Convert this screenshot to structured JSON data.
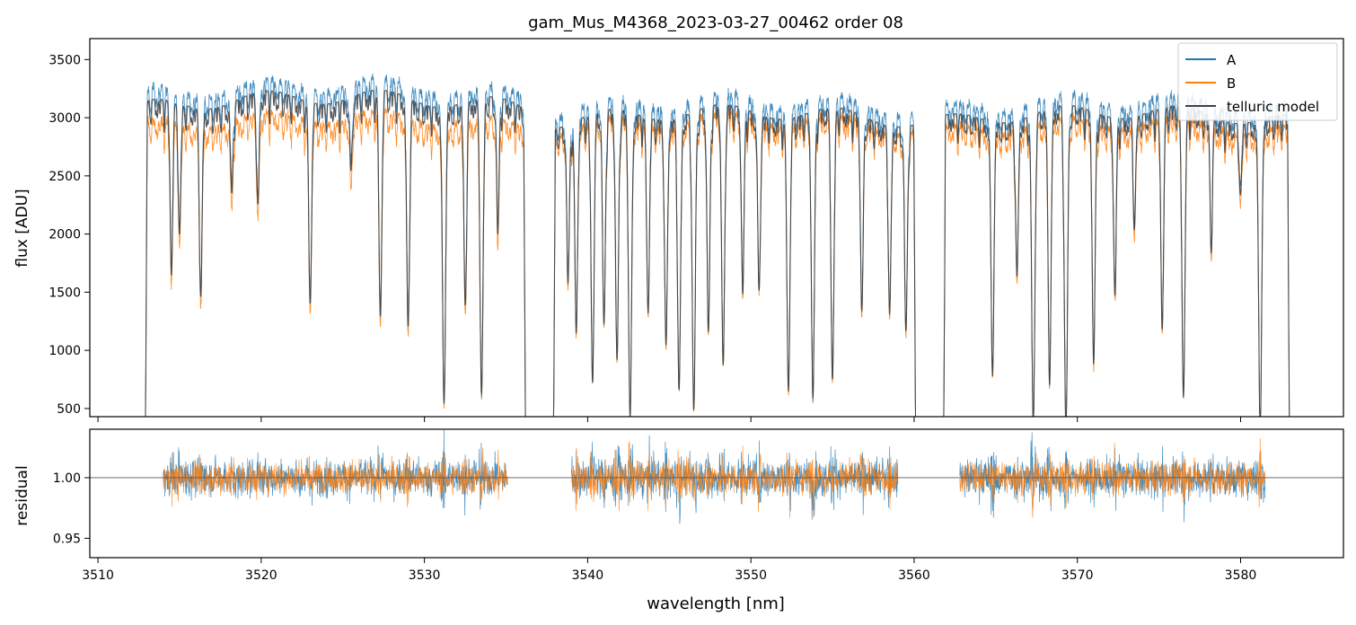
{
  "chart_data": [
    {
      "type": "line",
      "title": "gam_Mus_M4368_2023-03-27_00462  order 08",
      "xlabel": "",
      "ylabel": "flux [ADU]",
      "xlim": [
        3509.5,
        3586.3
      ],
      "ylim": [
        430,
        3680
      ],
      "x_ticks": [
        3510,
        3520,
        3530,
        3540,
        3550,
        3560,
        3570,
        3580
      ],
      "y_ticks": [
        500,
        1000,
        1500,
        2000,
        2500,
        3000,
        3500
      ],
      "y_tick_labels": [
        "500",
        "1000",
        "1500",
        "2000",
        "2500",
        "3000",
        "3500"
      ],
      "legend_position": "top-right",
      "grid": false,
      "segments": [
        {
          "start": 3512.9,
          "end": 3536.2,
          "a_level": 3280,
          "b_level": 3000
        },
        {
          "start": 3537.9,
          "end": 3560.1,
          "a_level": 3150,
          "b_level": 2980
        },
        {
          "start": 3561.8,
          "end": 3583.0,
          "a_level": 3150,
          "b_level": 2950
        }
      ],
      "absorption_lines": [
        {
          "x": 3514.5,
          "depth": 0.45
        },
        {
          "x": 3515.0,
          "depth": 0.35
        },
        {
          "x": 3516.3,
          "depth": 0.52
        },
        {
          "x": 3518.2,
          "depth": 0.25
        },
        {
          "x": 3519.8,
          "depth": 0.3
        },
        {
          "x": 3523.0,
          "depth": 0.55
        },
        {
          "x": 3525.5,
          "depth": 0.2
        },
        {
          "x": 3527.3,
          "depth": 0.6
        },
        {
          "x": 3529.0,
          "depth": 0.62
        },
        {
          "x": 3531.2,
          "depth": 0.82
        },
        {
          "x": 3532.5,
          "depth": 0.55
        },
        {
          "x": 3533.5,
          "depth": 0.8
        },
        {
          "x": 3534.5,
          "depth": 0.35
        },
        {
          "x": 3538.8,
          "depth": 0.45
        },
        {
          "x": 3539.3,
          "depth": 0.6
        },
        {
          "x": 3540.3,
          "depth": 0.75
        },
        {
          "x": 3541.0,
          "depth": 0.6
        },
        {
          "x": 3541.8,
          "depth": 0.7
        },
        {
          "x": 3542.6,
          "depth": 0.86
        },
        {
          "x": 3543.7,
          "depth": 0.55
        },
        {
          "x": 3544.8,
          "depth": 0.65
        },
        {
          "x": 3545.6,
          "depth": 0.78
        },
        {
          "x": 3546.5,
          "depth": 0.84
        },
        {
          "x": 3547.4,
          "depth": 0.62
        },
        {
          "x": 3548.3,
          "depth": 0.72
        },
        {
          "x": 3549.5,
          "depth": 0.5
        },
        {
          "x": 3550.5,
          "depth": 0.5
        },
        {
          "x": 3552.3,
          "depth": 0.78
        },
        {
          "x": 3553.8,
          "depth": 0.8
        },
        {
          "x": 3555.0,
          "depth": 0.75
        },
        {
          "x": 3556.8,
          "depth": 0.55
        },
        {
          "x": 3558.5,
          "depth": 0.55
        },
        {
          "x": 3559.5,
          "depth": 0.6
        },
        {
          "x": 3564.8,
          "depth": 0.72
        },
        {
          "x": 3566.3,
          "depth": 0.45
        },
        {
          "x": 3567.3,
          "depth": 0.88
        },
        {
          "x": 3568.3,
          "depth": 0.75
        },
        {
          "x": 3569.3,
          "depth": 0.9
        },
        {
          "x": 3571.0,
          "depth": 0.7
        },
        {
          "x": 3572.3,
          "depth": 0.5
        },
        {
          "x": 3573.5,
          "depth": 0.3
        },
        {
          "x": 3575.2,
          "depth": 0.6
        },
        {
          "x": 3576.5,
          "depth": 0.8
        },
        {
          "x": 3578.2,
          "depth": 0.35
        },
        {
          "x": 3580.0,
          "depth": 0.2
        },
        {
          "x": 3581.2,
          "depth": 0.88
        }
      ],
      "series": [
        {
          "name": "A",
          "color": "#1f77b4"
        },
        {
          "name": "B",
          "color": "#ff7f0e"
        },
        {
          "name": "telluric model",
          "color": "#404040"
        }
      ]
    },
    {
      "type": "line",
      "title": "",
      "xlabel": "wavelength [nm]",
      "ylabel": "residual",
      "xlim": [
        3509.5,
        3586.3
      ],
      "ylim": [
        0.934,
        1.04
      ],
      "x_ticks": [
        3510,
        3520,
        3530,
        3540,
        3550,
        3560,
        3570,
        3580
      ],
      "x_tick_labels": [
        "3510",
        "3520",
        "3530",
        "3540",
        "3550",
        "3560",
        "3570",
        "3580"
      ],
      "y_ticks": [
        0.95,
        1.0
      ],
      "y_tick_labels": [
        "0.95",
        "1.00"
      ],
      "reference_line": 1.0,
      "segments": [
        {
          "start": 3514.0,
          "end": 3535.1
        },
        {
          "start": 3539.0,
          "end": 3559.0
        },
        {
          "start": 3562.8,
          "end": 3581.5
        }
      ],
      "series": [
        {
          "name": "A",
          "color": "#1f77b4"
        },
        {
          "name": "B",
          "color": "#ff7f0e"
        }
      ]
    }
  ]
}
